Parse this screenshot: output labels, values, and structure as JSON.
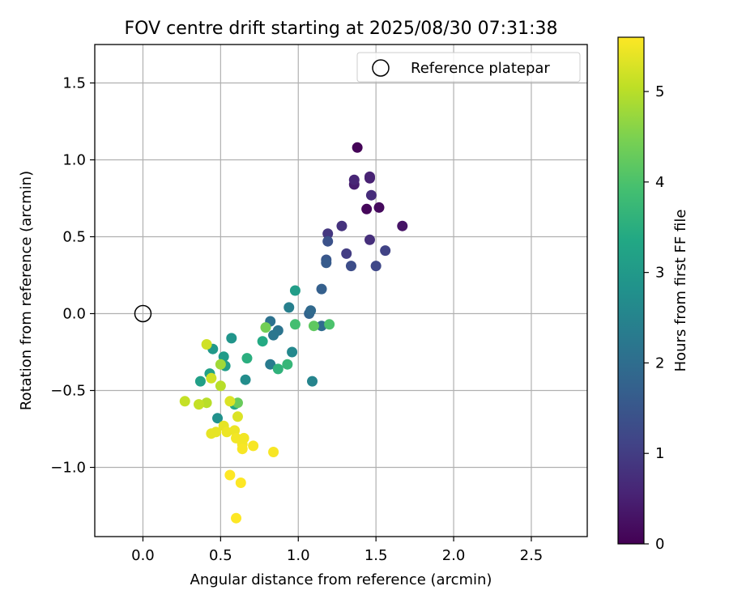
{
  "chart_data": {
    "type": "scatter",
    "title": "FOV centre drift starting at 2025/08/30 07:31:38",
    "xlabel": "Angular distance from reference (arcmin)",
    "ylabel": "Rotation from reference (arcmin)",
    "xlim": [
      -0.31,
      2.86
    ],
    "ylim": [
      -1.45,
      1.75
    ],
    "xticks": [
      0.0,
      0.5,
      1.0,
      1.5,
      2.0,
      2.5
    ],
    "xtick_labels": [
      "0.0",
      "0.5",
      "1.0",
      "1.5",
      "2.0",
      "2.5"
    ],
    "yticks": [
      -1.0,
      -0.5,
      0.0,
      0.5,
      1.0,
      1.5
    ],
    "ytick_labels": [
      "−1.0",
      "−0.5",
      "0.0",
      "0.5",
      "1.0",
      "1.5"
    ],
    "grid": true,
    "legend": {
      "position": "top-right",
      "entries": [
        "Reference platepar"
      ]
    },
    "reference_point": {
      "x": 0.0,
      "y": 0.0,
      "label": "Reference platepar"
    },
    "colorbar": {
      "label": "Hours from first FF file",
      "colormap": "viridis",
      "range": [
        0,
        5.6
      ],
      "ticks": [
        0,
        1,
        2,
        3,
        4,
        5
      ],
      "tick_labels": [
        "0",
        "1",
        "2",
        "3",
        "4",
        "5"
      ]
    },
    "points": [
      {
        "x": 1.38,
        "y": 1.08,
        "c": 0.05
      },
      {
        "x": 1.44,
        "y": 0.68,
        "c": 0.1
      },
      {
        "x": 1.52,
        "y": 0.69,
        "c": 0.15
      },
      {
        "x": 1.67,
        "y": 0.57,
        "c": 0.3
      },
      {
        "x": 1.36,
        "y": 0.84,
        "c": 0.45
      },
      {
        "x": 1.46,
        "y": 0.88,
        "c": 0.5
      },
      {
        "x": 1.46,
        "y": 0.89,
        "c": 0.55
      },
      {
        "x": 1.36,
        "y": 0.87,
        "c": 0.6
      },
      {
        "x": 1.47,
        "y": 0.77,
        "c": 0.7
      },
      {
        "x": 1.46,
        "y": 0.48,
        "c": 0.75
      },
      {
        "x": 1.28,
        "y": 0.57,
        "c": 0.8
      },
      {
        "x": 1.19,
        "y": 0.52,
        "c": 0.9
      },
      {
        "x": 1.31,
        "y": 0.39,
        "c": 1.0
      },
      {
        "x": 1.56,
        "y": 0.41,
        "c": 1.1
      },
      {
        "x": 1.5,
        "y": 0.31,
        "c": 1.2
      },
      {
        "x": 1.34,
        "y": 0.31,
        "c": 1.3
      },
      {
        "x": 1.19,
        "y": 0.47,
        "c": 1.4
      },
      {
        "x": 1.18,
        "y": 0.35,
        "c": 1.5
      },
      {
        "x": 1.18,
        "y": 0.33,
        "c": 1.6
      },
      {
        "x": 1.15,
        "y": 0.16,
        "c": 1.7
      },
      {
        "x": 1.07,
        "y": 0.0,
        "c": 1.8
      },
      {
        "x": 1.08,
        "y": 0.02,
        "c": 1.9
      },
      {
        "x": 1.15,
        "y": -0.08,
        "c": 2.0
      },
      {
        "x": 0.82,
        "y": -0.05,
        "c": 2.1
      },
      {
        "x": 0.87,
        "y": -0.11,
        "c": 2.15
      },
      {
        "x": 0.84,
        "y": -0.14,
        "c": 2.2
      },
      {
        "x": 0.82,
        "y": -0.33,
        "c": 2.3
      },
      {
        "x": 0.94,
        "y": 0.04,
        "c": 2.4
      },
      {
        "x": 1.09,
        "y": -0.44,
        "c": 2.5
      },
      {
        "x": 0.96,
        "y": -0.25,
        "c": 2.6
      },
      {
        "x": 0.66,
        "y": -0.43,
        "c": 2.7
      },
      {
        "x": 0.48,
        "y": -0.68,
        "c": 2.8
      },
      {
        "x": 0.57,
        "y": -0.16,
        "c": 2.9
      },
      {
        "x": 0.45,
        "y": -0.23,
        "c": 3.0
      },
      {
        "x": 0.52,
        "y": -0.28,
        "c": 3.05
      },
      {
        "x": 0.53,
        "y": -0.34,
        "c": 3.1
      },
      {
        "x": 0.37,
        "y": -0.44,
        "c": 3.15
      },
      {
        "x": 0.43,
        "y": -0.39,
        "c": 3.2
      },
      {
        "x": 0.59,
        "y": -0.59,
        "c": 3.3
      },
      {
        "x": 0.98,
        "y": 0.15,
        "c": 3.1
      },
      {
        "x": 0.77,
        "y": -0.18,
        "c": 3.4
      },
      {
        "x": 0.67,
        "y": -0.29,
        "c": 3.5
      },
      {
        "x": 0.87,
        "y": -0.36,
        "c": 3.6
      },
      {
        "x": 0.93,
        "y": -0.33,
        "c": 3.7
      },
      {
        "x": 0.98,
        "y": -0.07,
        "c": 3.9
      },
      {
        "x": 1.2,
        "y": -0.07,
        "c": 4.0
      },
      {
        "x": 1.1,
        "y": -0.08,
        "c": 4.2
      },
      {
        "x": 0.79,
        "y": -0.09,
        "c": 4.4
      },
      {
        "x": 0.61,
        "y": -0.58,
        "c": 4.3
      },
      {
        "x": 0.5,
        "y": -0.33,
        "c": 4.8
      },
      {
        "x": 0.41,
        "y": -0.58,
        "c": 5.0
      },
      {
        "x": 0.5,
        "y": -0.47,
        "c": 5.0
      },
      {
        "x": 0.27,
        "y": -0.57,
        "c": 5.1
      },
      {
        "x": 0.36,
        "y": -0.59,
        "c": 5.1
      },
      {
        "x": 0.41,
        "y": -0.2,
        "c": 5.2
      },
      {
        "x": 0.44,
        "y": -0.42,
        "c": 5.2
      },
      {
        "x": 0.56,
        "y": -0.57,
        "c": 5.3
      },
      {
        "x": 0.61,
        "y": -0.67,
        "c": 5.3
      },
      {
        "x": 0.44,
        "y": -0.78,
        "c": 5.4
      },
      {
        "x": 0.47,
        "y": -0.77,
        "c": 5.4
      },
      {
        "x": 0.52,
        "y": -0.73,
        "c": 5.4
      },
      {
        "x": 0.54,
        "y": -0.77,
        "c": 5.45
      },
      {
        "x": 0.59,
        "y": -0.76,
        "c": 5.45
      },
      {
        "x": 0.6,
        "y": -0.81,
        "c": 5.5
      },
      {
        "x": 0.64,
        "y": -0.85,
        "c": 5.5
      },
      {
        "x": 0.65,
        "y": -0.81,
        "c": 5.5
      },
      {
        "x": 0.64,
        "y": -0.88,
        "c": 5.55
      },
      {
        "x": 0.71,
        "y": -0.86,
        "c": 5.55
      },
      {
        "x": 0.84,
        "y": -0.9,
        "c": 5.55
      },
      {
        "x": 0.56,
        "y": -1.05,
        "c": 5.6
      },
      {
        "x": 0.63,
        "y": -1.1,
        "c": 5.6
      },
      {
        "x": 0.6,
        "y": -1.33,
        "c": 5.6
      }
    ]
  }
}
